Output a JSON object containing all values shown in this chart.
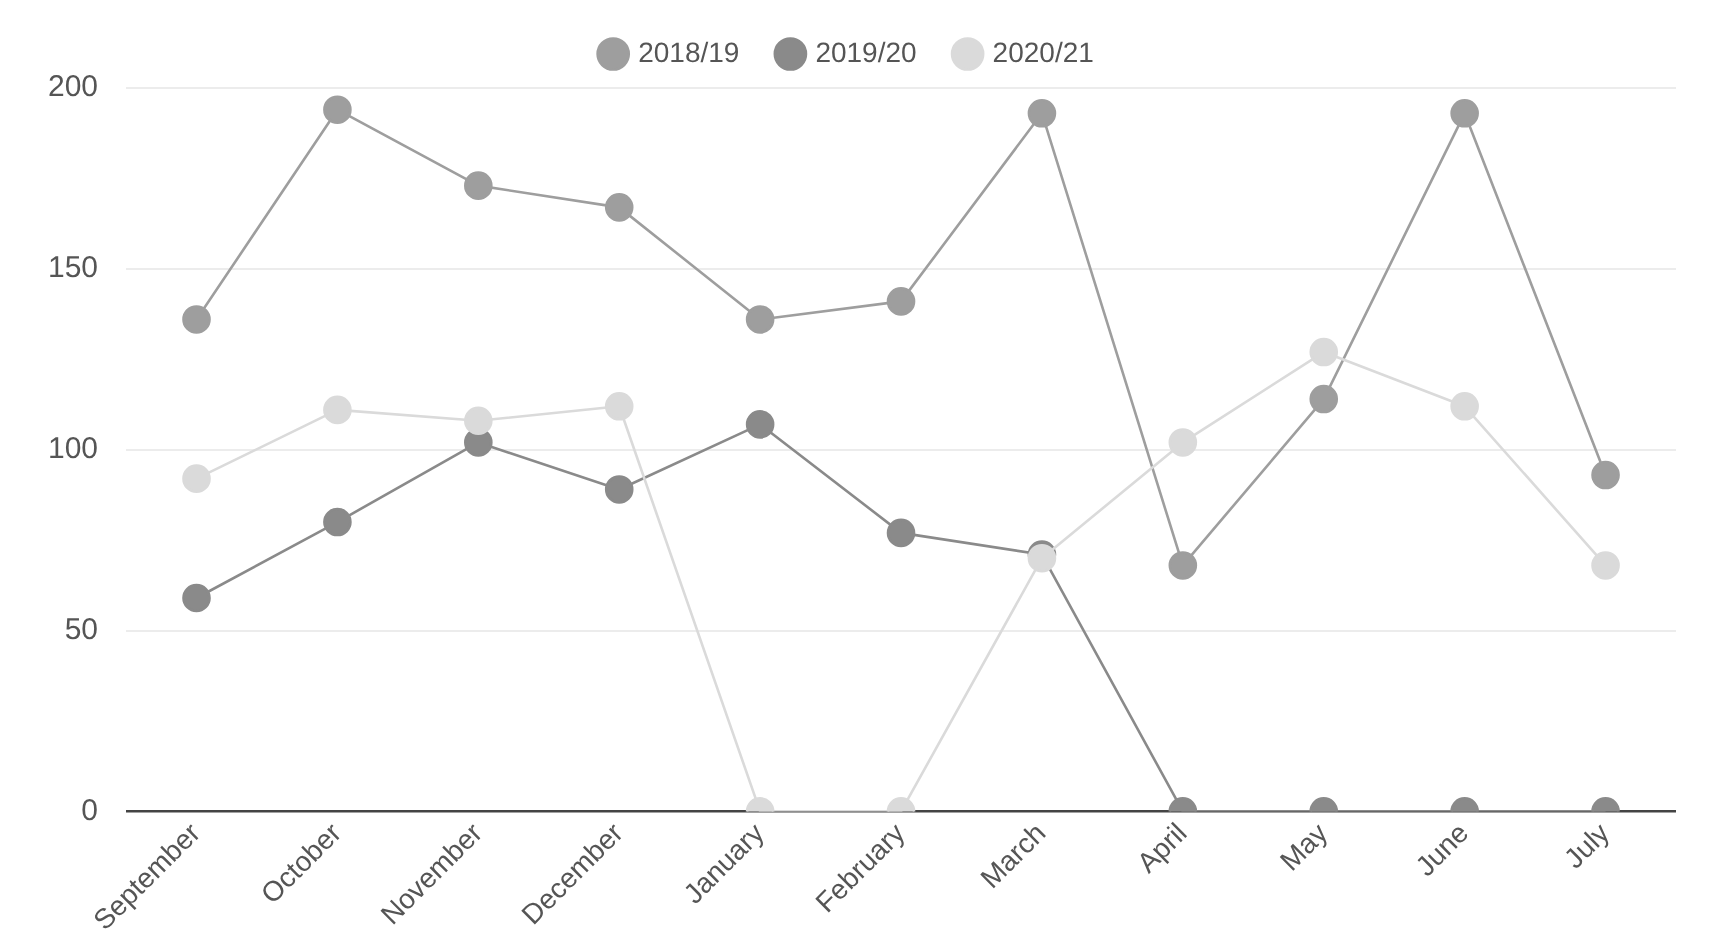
{
  "chart_data": {
    "type": "line",
    "categories": [
      "September",
      "October",
      "November",
      "December",
      "January",
      "February",
      "March",
      "April",
      "May",
      "June",
      "July"
    ],
    "series": [
      {
        "name": "2018/19",
        "color": "#9e9e9e",
        "values": [
          136,
          194,
          173,
          167,
          136,
          141,
          193,
          68,
          114,
          193,
          93
        ]
      },
      {
        "name": "2019/20",
        "color": "#8a8a8a",
        "values": [
          59,
          80,
          102,
          89,
          107,
          77,
          71,
          0,
          0,
          0,
          0
        ]
      },
      {
        "name": "2020/21",
        "color": "#dadada",
        "values": [
          92,
          111,
          108,
          112,
          0,
          0,
          70,
          102,
          127,
          112,
          68
        ]
      }
    ],
    "ylim": [
      0,
      200
    ],
    "yticks": [
      0,
      50,
      100,
      150,
      200
    ],
    "grid": "y",
    "legend": "top",
    "marker": "circle",
    "line_style": "solid"
  }
}
